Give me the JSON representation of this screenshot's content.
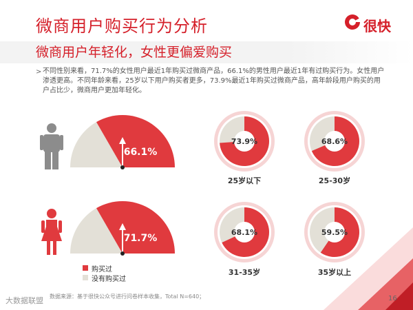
{
  "header": {
    "title": "微商用户购买行为分析",
    "subtitle": "微商用户年轻化，女性更偏爱购买",
    "logo_text": "很快",
    "brand_color": "#d5202a"
  },
  "summary": {
    "bullet_icon": "chevron-right-icon",
    "text": "不同性别来看，71.7%的女性用户最近1年购买过微商产品，66.1%的男性用户最近1年有过购买行为。女性用户渗透更高。不同年龄来看，25岁以下用户购买者更多，73.9%最近1年购买过微商产品，高年龄段用户购买的用户占比少，微商用户更加年轻化。"
  },
  "legend": {
    "bought": "购买过",
    "not_bought": "没有购买过",
    "bought_color": "#e03a3e",
    "not_bought_color": "#e3e0d7"
  },
  "footer": {
    "source": "数据来源：基于很快公众号进行问卷样本收集，Total N=640；",
    "page_number": "16",
    "watermark": "大数据联盟"
  },
  "chart_data": [
    {
      "type": "gauge",
      "category": "male",
      "icon": "male-person-icon",
      "values": [
        66.1
      ],
      "labels": [
        "66.1%"
      ],
      "series": [
        "购买过",
        "没有购买过"
      ]
    },
    {
      "type": "gauge",
      "category": "female",
      "icon": "female-person-icon",
      "values": [
        71.7
      ],
      "labels": [
        "71.7%"
      ],
      "series": [
        "购买过",
        "没有购买过"
      ]
    },
    {
      "type": "pie",
      "categories": [
        "25岁以下",
        "25-30岁",
        "31-35岁",
        "35岁以上"
      ],
      "values": [
        73.9,
        68.6,
        68.1,
        59.5
      ],
      "labels": [
        "73.9%",
        "68.6%",
        "68.1%",
        "59.5%"
      ],
      "series": [
        "购买过",
        "没有购买过"
      ]
    }
  ]
}
